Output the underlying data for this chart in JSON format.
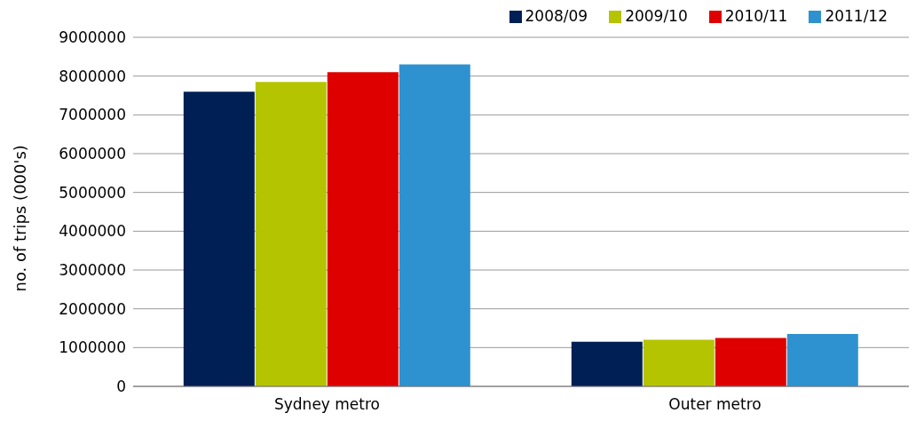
{
  "chart_data": {
    "type": "bar",
    "ylabel": "no. of trips (000's)",
    "categories": [
      "Sydney metro",
      "Outer metro"
    ],
    "series": [
      {
        "name": "2008/09",
        "color": "#001f54",
        "values": [
          7600000,
          1150000
        ]
      },
      {
        "name": "2009/10",
        "color": "#b5c400",
        "values": [
          7850000,
          1200000
        ]
      },
      {
        "name": "2010/11",
        "color": "#de0000",
        "values": [
          8100000,
          1250000
        ]
      },
      {
        "name": "2011/12",
        "color": "#2e92d0",
        "values": [
          8300000,
          1350000
        ]
      }
    ],
    "ylim": [
      0,
      9000000
    ],
    "yticks": [
      0,
      1000000,
      2000000,
      3000000,
      4000000,
      5000000,
      6000000,
      7000000,
      8000000,
      9000000
    ],
    "grid": "y",
    "legend": "top right"
  }
}
